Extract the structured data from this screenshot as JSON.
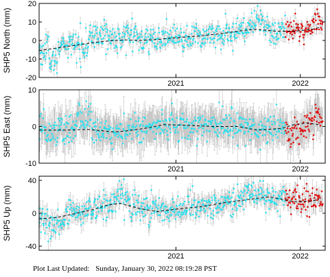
{
  "footer": {
    "label": "Plot Last Updated:",
    "value": "Sunday, January 30, 2022 08:19:28 PST"
  },
  "colors": {
    "points": "#29e0ee",
    "recent_points": "#e01010",
    "error_bars": "#bdbdbd",
    "trend": "#000000"
  },
  "chart_data": [
    {
      "type": "scatter",
      "station": "SHP5",
      "component": "North",
      "ylabel": "SHP5 North (mm)",
      "ylim": [
        -20,
        20
      ],
      "yticks": [
        -20,
        -10,
        0,
        10,
        20
      ],
      "xlim": [
        2019.9,
        2022.2
      ],
      "xticks": [
        {
          "value": 2021.0,
          "label": "2021"
        },
        {
          "value": 2022.0,
          "label": "2022"
        }
      ],
      "recent_start": 2021.88,
      "error_bar_mm": 2.5,
      "trend": [
        {
          "x": 2019.9,
          "y": -5.5
        },
        {
          "x": 2020.05,
          "y": -4.0
        },
        {
          "x": 2020.2,
          "y": -2.5
        },
        {
          "x": 2020.35,
          "y": -1.0
        },
        {
          "x": 2020.5,
          "y": 0.0
        },
        {
          "x": 2020.6,
          "y": 0.3
        },
        {
          "x": 2020.7,
          "y": 0.0
        },
        {
          "x": 2020.85,
          "y": 0.5
        },
        {
          "x": 2021.0,
          "y": 1.5
        },
        {
          "x": 2021.2,
          "y": 2.5
        },
        {
          "x": 2021.4,
          "y": 4.0
        },
        {
          "x": 2021.55,
          "y": 5.5
        },
        {
          "x": 2021.65,
          "y": 6.0
        },
        {
          "x": 2021.8,
          "y": 5.0
        },
        {
          "x": 2021.95,
          "y": 5.0
        },
        {
          "x": 2022.1,
          "y": 6.0
        },
        {
          "x": 2022.15,
          "y": 7.0
        }
      ],
      "noise_mm": 3.5,
      "features": [
        {
          "x0": 2019.98,
          "x1": 2020.05,
          "dy": -8.0
        },
        {
          "x0": 2020.3,
          "x1": 2020.45,
          "dy": 5.0
        },
        {
          "x0": 2020.55,
          "x1": 2020.68,
          "dy": 4.0
        },
        {
          "x0": 2021.58,
          "x1": 2021.7,
          "dy": 4.0
        },
        {
          "x0": 2022.1,
          "x1": 2022.17,
          "dy": 4.0
        }
      ]
    },
    {
      "type": "scatter",
      "station": "SHP5",
      "component": "East",
      "ylabel": "SHP5 East (mm)",
      "ylim": [
        -10,
        10
      ],
      "yticks": [
        -10,
        0,
        10
      ],
      "xlim": [
        2019.9,
        2022.2
      ],
      "xticks": [
        {
          "value": 2021.0,
          "label": "2021"
        },
        {
          "value": 2022.0,
          "label": "2022"
        }
      ],
      "recent_start": 2021.88,
      "error_bar_mm": 4.0,
      "trend": [
        {
          "x": 2019.9,
          "y": -1.0
        },
        {
          "x": 2020.1,
          "y": -1.0
        },
        {
          "x": 2020.3,
          "y": -0.8
        },
        {
          "x": 2020.5,
          "y": -1.5
        },
        {
          "x": 2020.6,
          "y": -1.2
        },
        {
          "x": 2020.75,
          "y": -0.5
        },
        {
          "x": 2020.9,
          "y": 0.5
        },
        {
          "x": 2021.1,
          "y": 0.3
        },
        {
          "x": 2021.3,
          "y": 0.0
        },
        {
          "x": 2021.5,
          "y": 0.0
        },
        {
          "x": 2021.65,
          "y": -1.0
        },
        {
          "x": 2021.85,
          "y": -0.5
        },
        {
          "x": 2021.95,
          "y": 0.5
        },
        {
          "x": 2022.05,
          "y": 1.0
        },
        {
          "x": 2022.15,
          "y": 0.5
        }
      ],
      "noise_mm": 2.0,
      "features": [
        {
          "x0": 2020.2,
          "x1": 2020.32,
          "dy": 4.0
        },
        {
          "x0": 2021.9,
          "x1": 2022.05,
          "dy": -3.0
        },
        {
          "x0": 2022.12,
          "x1": 2022.17,
          "dy": 3.5
        }
      ]
    },
    {
      "type": "scatter",
      "station": "SHP5",
      "component": "Up",
      "ylabel": "SHP5 Up (mm)",
      "ylim": [
        -45,
        45
      ],
      "yticks": [
        -40,
        0,
        40
      ],
      "xlim": [
        2019.9,
        2022.2
      ],
      "xticks": [
        {
          "value": 2021.0,
          "label": "2021"
        },
        {
          "value": 2022.0,
          "label": "2022"
        }
      ],
      "recent_start": 2021.88,
      "error_bar_mm": 8.0,
      "trend": [
        {
          "x": 2019.9,
          "y": -7.0
        },
        {
          "x": 2020.05,
          "y": -5.0
        },
        {
          "x": 2020.2,
          "y": 0.0
        },
        {
          "x": 2020.35,
          "y": 5.0
        },
        {
          "x": 2020.45,
          "y": 10.0
        },
        {
          "x": 2020.55,
          "y": 12.0
        },
        {
          "x": 2020.7,
          "y": 6.0
        },
        {
          "x": 2020.85,
          "y": 2.0
        },
        {
          "x": 2021.0,
          "y": 5.0
        },
        {
          "x": 2021.2,
          "y": 8.0
        },
        {
          "x": 2021.4,
          "y": 13.0
        },
        {
          "x": 2021.6,
          "y": 17.0
        },
        {
          "x": 2021.75,
          "y": 20.0
        },
        {
          "x": 2021.95,
          "y": 14.0
        },
        {
          "x": 2022.1,
          "y": 15.0
        },
        {
          "x": 2022.15,
          "y": 17.0
        }
      ],
      "noise_mm": 8.0,
      "features": [
        {
          "x0": 2019.98,
          "x1": 2020.08,
          "dy": -15.0
        },
        {
          "x0": 2020.5,
          "x1": 2020.62,
          "dy": 10.0
        },
        {
          "x0": 2021.55,
          "x1": 2021.72,
          "dy": 10.0
        }
      ]
    }
  ]
}
